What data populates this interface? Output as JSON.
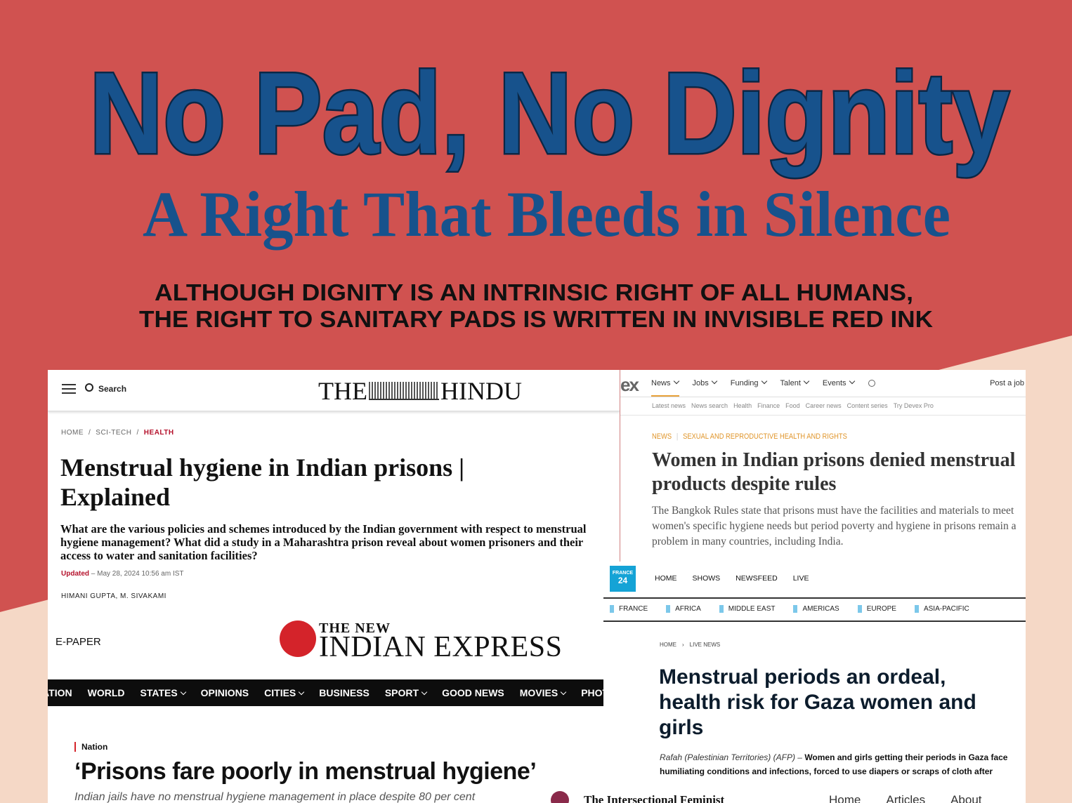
{
  "header": {
    "title": "No Pad, No Dignity",
    "subtitle": "A Right That Bleeds in Silence",
    "tagline": [
      "ALTHOUGH DIGNITY IS AN INTRINSIC RIGHT OF ALL HUMANS,",
      "THE RIGHT TO SANITARY PADS IS WRITTEN IN INVISIBLE RED INK"
    ]
  },
  "hindu": {
    "search": "Search",
    "logo": [
      "THE",
      "HINDU"
    ],
    "breadcrumb": [
      "HOME",
      "SCI-TECH",
      "HEALTH"
    ],
    "headline": "Menstrual hygiene in Indian prisons | Explained",
    "summary": "What are the various policies and schemes introduced by the Indian government with respect to menstrual hygiene management? What did a study in a Maharashtra prison reveal about women prisoners and their access to water and sanitation facilities?",
    "updated": "Updated",
    "date": "– May 28, 2024 10:56 am IST",
    "authors": "HIMANI GUPTA, M. SIVAKAMI"
  },
  "devex": {
    "logo": "ex",
    "nav": [
      "News",
      "Jobs",
      "Funding",
      "Talent",
      "Events"
    ],
    "post": "Post a job",
    "subnav": [
      "Latest news",
      "News search",
      "Health",
      "Finance",
      "Food",
      "Career news",
      "Content series",
      "Try Devex Pro"
    ],
    "section": "NEWS",
    "topic": "SEXUAL AND REPRODUCTIVE HEALTH AND RIGHTS",
    "headline": "Women in Indian prisons denied menstrual products despite rules",
    "summary": "The Bangkok Rules state that prisons must have the facilities and materials to meet women's specific hygiene needs but period poverty and hygiene in prisons remain a problem in many countries, including India."
  },
  "france24": {
    "logo": [
      "FRANCE",
      "24"
    ],
    "nav": [
      "HOME",
      "SHOWS",
      "NEWSFEED",
      "LIVE"
    ],
    "regions": [
      "FRANCE",
      "AFRICA",
      "MIDDLE EAST",
      "AMERICAS",
      "EUROPE",
      "ASIA-PACIFIC"
    ],
    "breadcrumb": [
      "HOME",
      "LIVE NEWS"
    ],
    "headline": "Menstrual periods an ordeal, health risk for Gaza women and girls",
    "dateline": "Rafah (Palestinian Territories) (AFP) –",
    "lede": "Women and girls getting their periods in Gaza face humiliating conditions and infections, forced to use diapers or scraps of cloth after"
  },
  "nie": {
    "epaper": "E-PAPER",
    "logo": [
      "THE NEW",
      "INDIAN EXPRESS"
    ],
    "nav": [
      "NATION",
      "WORLD",
      "STATES",
      "OPINIONS",
      "CITIES",
      "BUSINESS",
      "SPORT",
      "GOOD NEWS",
      "MOVIES",
      "PHOTOS"
    ],
    "section": "Nation",
    "headline": "‘Prisons fare poorly in menstrual hygiene’",
    "summary": "Indian jails have no menstrual hygiene management in place despite 80 per cent"
  },
  "tif": {
    "name": "The Intersectional Feminist",
    "nav": [
      "Home",
      "Articles",
      "About"
    ]
  }
}
